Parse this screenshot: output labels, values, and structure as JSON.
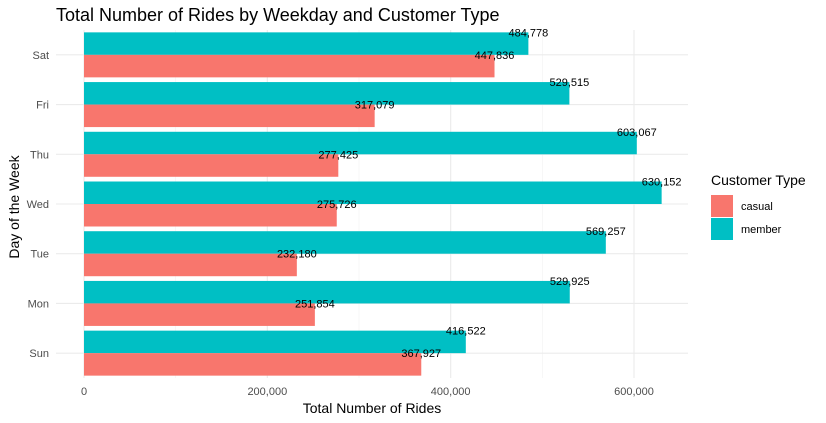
{
  "chart_data": {
    "type": "bar",
    "orientation": "horizontal",
    "title": "Total Number of Rides by Weekday and Customer Type",
    "xlabel": "Total Number of Rides",
    "ylabel": "Day of the Week",
    "categories": [
      "Sun",
      "Mon",
      "Tue",
      "Wed",
      "Thu",
      "Fri",
      "Sat"
    ],
    "x_ticks": [
      {
        "value": 0,
        "label": "0"
      },
      {
        "value": 200000,
        "label": "200,000"
      },
      {
        "value": 400000,
        "label": "400,000"
      },
      {
        "value": 600000,
        "label": "600,000"
      }
    ],
    "xlim": [
      0,
      660000
    ],
    "grid": true,
    "legend": {
      "title": "Customer Type",
      "placement": "right"
    },
    "series": [
      {
        "name": "casual",
        "color": "#F8766D",
        "values": [
          367927,
          251854,
          232180,
          275726,
          277425,
          317079,
          447836
        ],
        "labels": [
          "367,927",
          "251,854",
          "232,180",
          "275,726",
          "277,425",
          "317,079",
          "447,836"
        ]
      },
      {
        "name": "member",
        "color": "#00BFC4",
        "values": [
          416522,
          529925,
          569257,
          630152,
          603067,
          529515,
          484778
        ],
        "labels": [
          "416,522",
          "529,925",
          "569,257",
          "630,152",
          "603,067",
          "529,515",
          "484,778"
        ]
      }
    ]
  }
}
